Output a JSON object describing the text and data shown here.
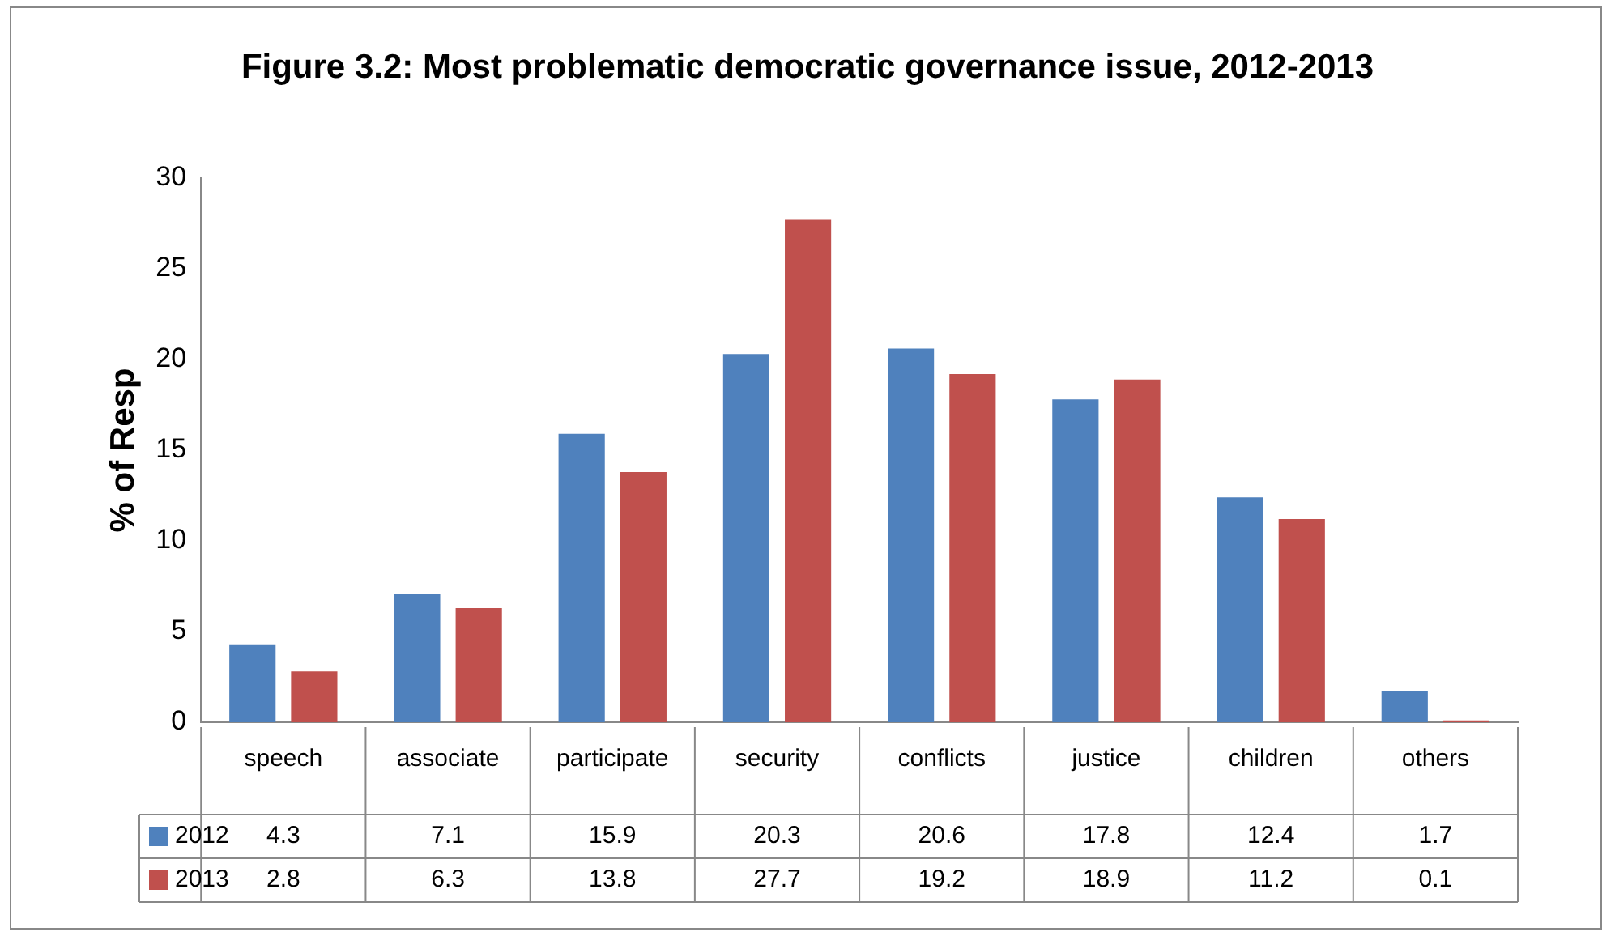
{
  "chart_data": {
    "type": "bar",
    "title": "Figure 3.2: Most problematic democratic governance issue, 2012-2013",
    "ylabel": "% of Resp",
    "categories": [
      "speech",
      "associate",
      "participate",
      "security",
      "conflicts",
      "justice",
      "children",
      "others"
    ],
    "series": [
      {
        "name": "2012",
        "color": "#4f81bd",
        "values": [
          4.3,
          7.1,
          15.9,
          20.3,
          20.6,
          17.8,
          12.4,
          1.7
        ]
      },
      {
        "name": "2013",
        "color": "#c0504d",
        "values": [
          2.8,
          6.3,
          13.8,
          27.7,
          19.2,
          18.9,
          11.2,
          0.1
        ]
      }
    ],
    "ylim": [
      0,
      30
    ],
    "yticks": [
      0,
      5,
      10,
      15,
      20,
      25,
      30
    ],
    "data_labels": true,
    "legend": "bottom"
  }
}
